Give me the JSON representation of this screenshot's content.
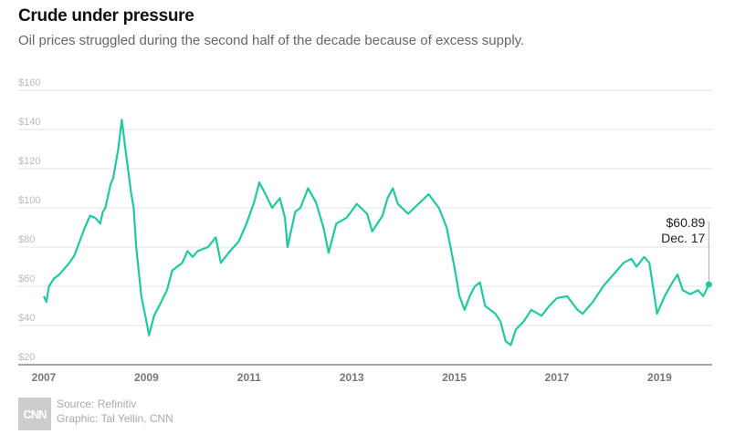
{
  "header": {
    "title": "Crude under pressure",
    "subtitle": "Oil prices struggled during the second half of the decade because of excess supply."
  },
  "footer": {
    "source": "Source: Refinitiv",
    "credit": "Graphic: Tal Yellin, CNN",
    "logo": "CNN"
  },
  "colors": {
    "line": "#20c9a0",
    "grid": "#e3e3e3",
    "axis": "#888888"
  },
  "chart_data": {
    "type": "line",
    "title": "Crude under pressure",
    "xlabel": "",
    "ylabel": "",
    "xlim": [
      2007,
      2020
    ],
    "ylim": [
      20,
      160
    ],
    "yticks": [
      20,
      40,
      60,
      80,
      100,
      120,
      140,
      160
    ],
    "ytick_labels": [
      "$20",
      "$40",
      "$60",
      "$80",
      "$100",
      "$120",
      "$140",
      "$160"
    ],
    "xticks": [
      2007,
      2009,
      2011,
      2013,
      2015,
      2017,
      2019
    ],
    "xtick_labels": [
      "2007",
      "2009",
      "2011",
      "2013",
      "2015",
      "2017",
      "2019"
    ],
    "grid": true,
    "annotation": {
      "value_label": "$60.89",
      "date_label": "Dec. 17",
      "x": 2019.96,
      "y": 60.89
    },
    "series": [
      {
        "name": "Oil price",
        "x": [
          2007.0,
          2007.05,
          2007.1,
          2007.2,
          2007.3,
          2007.4,
          2007.5,
          2007.6,
          2007.7,
          2007.8,
          2007.9,
          2008.0,
          2008.1,
          2008.15,
          2008.2,
          2008.3,
          2008.35,
          2008.45,
          2008.52,
          2008.6,
          2008.7,
          2008.75,
          2008.8,
          2008.9,
          2009.0,
          2009.05,
          2009.1,
          2009.15,
          2009.25,
          2009.4,
          2009.5,
          2009.6,
          2009.7,
          2009.8,
          2009.9,
          2010.0,
          2010.2,
          2010.35,
          2010.45,
          2010.6,
          2010.8,
          2010.95,
          2011.1,
          2011.2,
          2011.3,
          2011.45,
          2011.6,
          2011.7,
          2011.75,
          2011.9,
          2012.0,
          2012.15,
          2012.3,
          2012.45,
          2012.55,
          2012.7,
          2012.9,
          2013.1,
          2013.3,
          2013.4,
          2013.6,
          2013.7,
          2013.8,
          2013.9,
          2014.1,
          2014.3,
          2014.5,
          2014.7,
          2014.85,
          2015.0,
          2015.1,
          2015.2,
          2015.3,
          2015.4,
          2015.5,
          2015.6,
          2015.8,
          2015.9,
          2016.0,
          2016.1,
          2016.2,
          2016.35,
          2016.5,
          2016.7,
          2016.85,
          2017.0,
          2017.2,
          2017.4,
          2017.5,
          2017.7,
          2017.9,
          2018.1,
          2018.3,
          2018.45,
          2018.55,
          2018.7,
          2018.8,
          2018.9,
          2018.95,
          2019.1,
          2019.25,
          2019.35,
          2019.45,
          2019.6,
          2019.75,
          2019.85,
          2019.96
        ],
        "y": [
          55,
          52,
          60,
          64,
          66,
          69,
          72,
          76,
          83,
          90,
          96,
          95,
          92,
          98,
          100,
          112,
          115,
          130,
          145,
          128,
          108,
          100,
          80,
          55,
          42,
          35,
          40,
          45,
          50,
          58,
          68,
          70,
          72,
          78,
          75,
          78,
          80,
          85,
          72,
          77,
          83,
          92,
          103,
          113,
          108,
          100,
          105,
          95,
          80,
          98,
          100,
          110,
          103,
          90,
          77,
          92,
          95,
          102,
          97,
          88,
          96,
          105,
          110,
          102,
          97,
          102,
          107,
          100,
          90,
          70,
          55,
          48,
          55,
          60,
          62,
          50,
          46,
          42,
          32,
          30,
          38,
          42,
          48,
          45,
          50,
          54,
          55,
          48,
          46,
          52,
          60,
          66,
          72,
          74,
          70,
          75,
          72,
          55,
          46,
          55,
          62,
          66,
          58,
          56,
          58,
          55,
          60.89
        ]
      }
    ]
  }
}
